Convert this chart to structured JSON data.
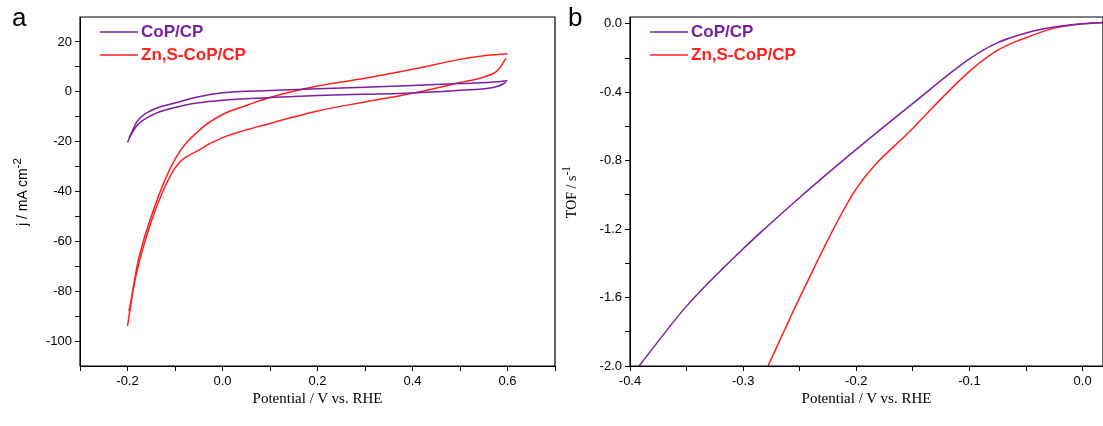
{
  "chart_data": [
    {
      "type": "line",
      "xlabel": "Potential / V vs. RHE",
      "ylabel": "j / mA cm$^{-2}$",
      "annotations": [
        "a"
      ],
      "legend": "top left",
      "grid": false,
      "marker": "none",
      "xlim": [
        -0.3,
        0.7
      ],
      "ylim": [
        -110,
        30
      ],
      "xticks": [
        {
          "value": -0.3,
          "label": null
        },
        -0.2,
        {
          "value": -0.1,
          "label": null
        },
        {
          "value": 0,
          "label": "0.0"
        },
        {
          "value": 0.1,
          "label": null
        },
        0.2,
        {
          "value": 0.3,
          "label": null
        },
        0.4,
        {
          "value": 0.5,
          "label": null
        },
        0.6,
        {
          "value": 0.7,
          "label": null
        }
      ],
      "yticks": [
        -100,
        {
          "value": -90,
          "label": null
        },
        -80,
        {
          "value": -70,
          "label": null
        },
        -60,
        {
          "value": -50,
          "label": null
        },
        -40,
        {
          "value": -30,
          "label": null
        },
        -20,
        {
          "value": -10,
          "label": null
        },
        0,
        {
          "value": 10,
          "label": null
        },
        20
      ],
      "series": [
        {
          "name": "CoP/CP",
          "color": "#7b1fa2",
          "x": [
            -0.2,
            -0.18,
            -0.15,
            -0.1,
            -0.05,
            0,
            0.1,
            0.2,
            0.3,
            0.4,
            0.5,
            0.58,
            0.6
          ],
          "values": [
            -20.3,
            -12,
            -7.5,
            -4.5,
            -2,
            -0.4,
            0.5,
            1.2,
            1.8,
            2.5,
            3.3,
            4,
            4.5
          ]
        },
        {
          "color": "#7b1fa2",
          "x": [
            -0.197,
            -0.18,
            -0.15,
            -0.1,
            -0.05,
            0,
            0.1,
            0.2,
            0.3,
            0.4,
            0.5,
            0.58,
            0.597
          ],
          "values": [
            -18.5,
            -13.5,
            -9.5,
            -6.3,
            -4.4,
            -3.4,
            -2.3,
            -1.5,
            -1,
            -0.5,
            0.6,
            2.2,
            3.8
          ]
        },
        {
          "name": "Zn,S-CoP/CP",
          "color": "#ff2020",
          "x": [
            -0.2,
            -0.18,
            -0.15,
            -0.1,
            -0.05,
            0,
            0.05,
            0.1,
            0.2,
            0.3,
            0.4,
            0.5,
            0.55,
            0.58,
            0.6
          ],
          "values": [
            -94,
            -70,
            -50,
            -27,
            -15.6,
            -9.1,
            -5.5,
            -2.3,
            2.3,
            5.4,
            9,
            13,
            14.5,
            15,
            15.3
          ]
        },
        {
          "color": "#ff2020",
          "x": [
            -0.197,
            -0.18,
            -0.15,
            -0.1,
            -0.05,
            0,
            0.1,
            0.2,
            0.3,
            0.4,
            0.5,
            0.55,
            0.58,
            0.597
          ],
          "values": [
            -88,
            -72,
            -52,
            -30.6,
            -23.4,
            -18.4,
            -12.7,
            -7.7,
            -4.1,
            -0.6,
            3.7,
            5.9,
            8.7,
            13.5
          ]
        }
      ]
    },
    {
      "type": "line",
      "xlabel": "Potential / V vs. RHE",
      "ylabel": "TOF / s$^{-1}$",
      "annotations": [
        "b"
      ],
      "legend": "top left",
      "grid": false,
      "marker": "none",
      "xlim": [
        -0.4,
        0.018
      ],
      "ylim": [
        -2,
        0.04
      ],
      "xticks": [
        -0.4,
        {
          "value": -0.35,
          "label": null
        },
        -0.3,
        {
          "value": -0.25,
          "label": null
        },
        -0.2,
        {
          "value": -0.15,
          "label": null
        },
        -0.1,
        {
          "value": -0.05,
          "label": null
        },
        {
          "value": 0,
          "label": "0.0"
        }
      ],
      "yticks": [
        {
          "value": -2,
          "label": "-2.0"
        },
        {
          "value": -1.8,
          "label": null
        },
        -1.6,
        {
          "value": -1.4,
          "label": null
        },
        -1.2,
        {
          "value": -1,
          "label": null
        },
        -0.8,
        {
          "value": -0.6,
          "label": null
        },
        -0.4,
        {
          "value": -0.2,
          "label": null
        },
        {
          "value": 0,
          "label": "0.0"
        }
      ],
      "series": [
        {
          "name": "CoP/CP",
          "color": "#7b1fa2",
          "x": [
            -0.392,
            -0.35,
            -0.3,
            -0.25,
            -0.2,
            -0.15,
            -0.1,
            -0.075,
            -0.05,
            -0.025,
            0,
            0.018
          ],
          "values": [
            -2,
            -1.65,
            -1.315,
            -1.015,
            -0.734,
            -0.465,
            -0.205,
            -0.11,
            -0.054,
            -0.019,
            0,
            0.008
          ]
        },
        {
          "name": "Zn,S-CoP/CP",
          "color": "#ff2020",
          "x": [
            -0.278,
            -0.25,
            -0.2,
            -0.15,
            -0.1,
            -0.075,
            -0.05,
            -0.025,
            0,
            0.018
          ],
          "values": [
            -2,
            -1.6,
            -0.963,
            -0.61,
            -0.278,
            -0.154,
            -0.081,
            -0.025,
            0,
            0.008
          ]
        }
      ]
    }
  ]
}
